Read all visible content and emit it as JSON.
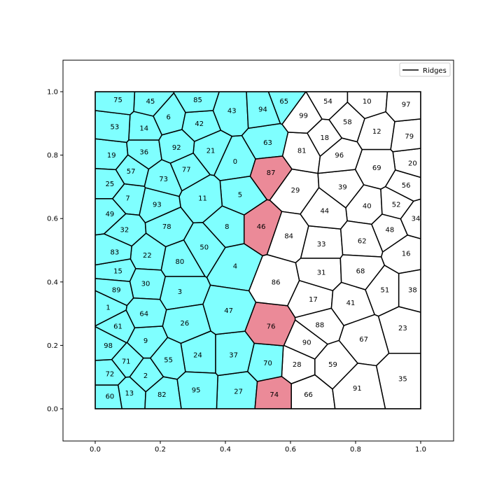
{
  "legend": {
    "label": "Ridges"
  },
  "axes": {
    "xlim": [
      -0.1,
      1.1
    ],
    "ylim": [
      -0.1,
      1.1
    ],
    "xticks": [
      "0.0",
      "0.2",
      "0.4",
      "0.6",
      "0.8",
      "1.0"
    ],
    "yticks": [
      "0.0",
      "0.2",
      "0.4",
      "0.6",
      "0.8",
      "1.0"
    ]
  },
  "colors": {
    "cyan": "#7fffff",
    "red": "#eb8a98",
    "white": "#ffffff"
  },
  "chart_data": {
    "type": "voronoi",
    "cells": [
      {
        "id": "0",
        "x": 0.43,
        "y": 0.78,
        "fill": "cyan"
      },
      {
        "id": "1",
        "x": 0.04,
        "y": 0.32,
        "fill": "cyan"
      },
      {
        "id": "2",
        "x": 0.155,
        "y": 0.105,
        "fill": "cyan"
      },
      {
        "id": "3",
        "x": 0.26,
        "y": 0.37,
        "fill": "cyan"
      },
      {
        "id": "4",
        "x": 0.43,
        "y": 0.45,
        "fill": "cyan"
      },
      {
        "id": "5",
        "x": 0.445,
        "y": 0.675,
        "fill": "cyan"
      },
      {
        "id": "6",
        "x": 0.225,
        "y": 0.92,
        "fill": "cyan"
      },
      {
        "id": "7",
        "x": 0.1,
        "y": 0.665,
        "fill": "cyan"
      },
      {
        "id": "8",
        "x": 0.405,
        "y": 0.575,
        "fill": "cyan"
      },
      {
        "id": "9",
        "x": 0.155,
        "y": 0.215,
        "fill": "cyan"
      },
      {
        "id": "10",
        "x": 0.835,
        "y": 0.97,
        "fill": "white"
      },
      {
        "id": "11",
        "x": 0.33,
        "y": 0.665,
        "fill": "cyan"
      },
      {
        "id": "12",
        "x": 0.865,
        "y": 0.875,
        "fill": "white"
      },
      {
        "id": "13",
        "x": 0.105,
        "y": 0.05,
        "fill": "cyan"
      },
      {
        "id": "14",
        "x": 0.15,
        "y": 0.885,
        "fill": "cyan"
      },
      {
        "id": "15",
        "x": 0.07,
        "y": 0.435,
        "fill": "cyan"
      },
      {
        "id": "16",
        "x": 0.955,
        "y": 0.49,
        "fill": "white"
      },
      {
        "id": "17",
        "x": 0.67,
        "y": 0.345,
        "fill": "white"
      },
      {
        "id": "18",
        "x": 0.705,
        "y": 0.855,
        "fill": "white"
      },
      {
        "id": "19",
        "x": 0.05,
        "y": 0.8,
        "fill": "cyan"
      },
      {
        "id": "20",
        "x": 0.975,
        "y": 0.775,
        "fill": "white"
      },
      {
        "id": "21",
        "x": 0.355,
        "y": 0.815,
        "fill": "cyan"
      },
      {
        "id": "22",
        "x": 0.16,
        "y": 0.485,
        "fill": "cyan"
      },
      {
        "id": "23",
        "x": 0.945,
        "y": 0.255,
        "fill": "white"
      },
      {
        "id": "24",
        "x": 0.315,
        "y": 0.17,
        "fill": "cyan"
      },
      {
        "id": "25",
        "x": 0.045,
        "y": 0.71,
        "fill": "cyan"
      },
      {
        "id": "26",
        "x": 0.275,
        "y": 0.27,
        "fill": "cyan"
      },
      {
        "id": "27",
        "x": 0.44,
        "y": 0.055,
        "fill": "cyan"
      },
      {
        "id": "28",
        "x": 0.62,
        "y": 0.14,
        "fill": "white"
      },
      {
        "id": "29",
        "x": 0.615,
        "y": 0.69,
        "fill": "white"
      },
      {
        "id": "30",
        "x": 0.155,
        "y": 0.395,
        "fill": "cyan"
      },
      {
        "id": "31",
        "x": 0.695,
        "y": 0.43,
        "fill": "white"
      },
      {
        "id": "32",
        "x": 0.09,
        "y": 0.565,
        "fill": "cyan"
      },
      {
        "id": "33",
        "x": 0.695,
        "y": 0.52,
        "fill": "white"
      },
      {
        "id": "34",
        "x": 0.985,
        "y": 0.6,
        "fill": "white"
      },
      {
        "id": "35",
        "x": 0.945,
        "y": 0.095,
        "fill": "white"
      },
      {
        "id": "36",
        "x": 0.15,
        "y": 0.81,
        "fill": "cyan"
      },
      {
        "id": "37",
        "x": 0.425,
        "y": 0.17,
        "fill": "cyan"
      },
      {
        "id": "38",
        "x": 0.975,
        "y": 0.375,
        "fill": "white"
      },
      {
        "id": "39",
        "x": 0.76,
        "y": 0.7,
        "fill": "white"
      },
      {
        "id": "40",
        "x": 0.835,
        "y": 0.64,
        "fill": "white"
      },
      {
        "id": "41",
        "x": 0.785,
        "y": 0.335,
        "fill": "white"
      },
      {
        "id": "42",
        "x": 0.32,
        "y": 0.9,
        "fill": "cyan"
      },
      {
        "id": "43",
        "x": 0.42,
        "y": 0.94,
        "fill": "cyan"
      },
      {
        "id": "44",
        "x": 0.705,
        "y": 0.625,
        "fill": "white"
      },
      {
        "id": "45",
        "x": 0.17,
        "y": 0.97,
        "fill": "cyan"
      },
      {
        "id": "46",
        "x": 0.51,
        "y": 0.575,
        "fill": "red"
      },
      {
        "id": "47",
        "x": 0.41,
        "y": 0.31,
        "fill": "cyan"
      },
      {
        "id": "48",
        "x": 0.905,
        "y": 0.565,
        "fill": "white"
      },
      {
        "id": "49",
        "x": 0.045,
        "y": 0.615,
        "fill": "cyan"
      },
      {
        "id": "50",
        "x": 0.335,
        "y": 0.51,
        "fill": "cyan"
      },
      {
        "id": "51",
        "x": 0.89,
        "y": 0.375,
        "fill": "white"
      },
      {
        "id": "52",
        "x": 0.925,
        "y": 0.645,
        "fill": "white"
      },
      {
        "id": "53",
        "x": 0.06,
        "y": 0.89,
        "fill": "cyan"
      },
      {
        "id": "54",
        "x": 0.715,
        "y": 0.97,
        "fill": "white"
      },
      {
        "id": "55",
        "x": 0.225,
        "y": 0.155,
        "fill": "cyan"
      },
      {
        "id": "56",
        "x": 0.955,
        "y": 0.705,
        "fill": "white"
      },
      {
        "id": "57",
        "x": 0.11,
        "y": 0.75,
        "fill": "cyan"
      },
      {
        "id": "58",
        "x": 0.775,
        "y": 0.905,
        "fill": "white"
      },
      {
        "id": "59",
        "x": 0.73,
        "y": 0.14,
        "fill": "white"
      },
      {
        "id": "60",
        "x": 0.045,
        "y": 0.04,
        "fill": "cyan"
      },
      {
        "id": "61",
        "x": 0.07,
        "y": 0.26,
        "fill": "cyan"
      },
      {
        "id": "62",
        "x": 0.82,
        "y": 0.53,
        "fill": "white"
      },
      {
        "id": "63",
        "x": 0.53,
        "y": 0.84,
        "fill": "cyan"
      },
      {
        "id": "64",
        "x": 0.15,
        "y": 0.3,
        "fill": "cyan"
      },
      {
        "id": "65",
        "x": 0.58,
        "y": 0.97,
        "fill": "cyan"
      },
      {
        "id": "66",
        "x": 0.655,
        "y": 0.045,
        "fill": "white"
      },
      {
        "id": "67",
        "x": 0.825,
        "y": 0.22,
        "fill": "white"
      },
      {
        "id": "68",
        "x": 0.815,
        "y": 0.435,
        "fill": "white"
      },
      {
        "id": "69",
        "x": 0.865,
        "y": 0.76,
        "fill": "white"
      },
      {
        "id": "70",
        "x": 0.53,
        "y": 0.145,
        "fill": "cyan"
      },
      {
        "id": "71",
        "x": 0.095,
        "y": 0.15,
        "fill": "cyan"
      },
      {
        "id": "72",
        "x": 0.045,
        "y": 0.11,
        "fill": "cyan"
      },
      {
        "id": "73",
        "x": 0.21,
        "y": 0.725,
        "fill": "cyan"
      },
      {
        "id": "74",
        "x": 0.55,
        "y": 0.045,
        "fill": "red"
      },
      {
        "id": "75",
        "x": 0.07,
        "y": 0.975,
        "fill": "cyan"
      },
      {
        "id": "76",
        "x": 0.54,
        "y": 0.26,
        "fill": "red"
      },
      {
        "id": "77",
        "x": 0.28,
        "y": 0.755,
        "fill": "cyan"
      },
      {
        "id": "78",
        "x": 0.22,
        "y": 0.575,
        "fill": "cyan"
      },
      {
        "id": "79",
        "x": 0.965,
        "y": 0.86,
        "fill": "white"
      },
      {
        "id": "80",
        "x": 0.26,
        "y": 0.465,
        "fill": "cyan"
      },
      {
        "id": "81",
        "x": 0.635,
        "y": 0.815,
        "fill": "white"
      },
      {
        "id": "82",
        "x": 0.205,
        "y": 0.045,
        "fill": "cyan"
      },
      {
        "id": "83",
        "x": 0.06,
        "y": 0.495,
        "fill": "cyan"
      },
      {
        "id": "84",
        "x": 0.595,
        "y": 0.545,
        "fill": "white"
      },
      {
        "id": "85",
        "x": 0.315,
        "y": 0.975,
        "fill": "cyan"
      },
      {
        "id": "86",
        "x": 0.555,
        "y": 0.4,
        "fill": "white"
      },
      {
        "id": "87",
        "x": 0.54,
        "y": 0.745,
        "fill": "red"
      },
      {
        "id": "88",
        "x": 0.69,
        "y": 0.265,
        "fill": "white"
      },
      {
        "id": "89",
        "x": 0.065,
        "y": 0.375,
        "fill": "cyan"
      },
      {
        "id": "90",
        "x": 0.65,
        "y": 0.21,
        "fill": "white"
      },
      {
        "id": "91",
        "x": 0.805,
        "y": 0.065,
        "fill": "white"
      },
      {
        "id": "92",
        "x": 0.25,
        "y": 0.825,
        "fill": "cyan"
      },
      {
        "id": "93",
        "x": 0.19,
        "y": 0.645,
        "fill": "cyan"
      },
      {
        "id": "94",
        "x": 0.515,
        "y": 0.945,
        "fill": "cyan"
      },
      {
        "id": "95",
        "x": 0.31,
        "y": 0.06,
        "fill": "cyan"
      },
      {
        "id": "96",
        "x": 0.75,
        "y": 0.8,
        "fill": "white"
      },
      {
        "id": "97",
        "x": 0.955,
        "y": 0.96,
        "fill": "white"
      },
      {
        "id": "98",
        "x": 0.04,
        "y": 0.2,
        "fill": "cyan"
      },
      {
        "id": "99",
        "x": 0.64,
        "y": 0.925,
        "fill": "white"
      }
    ]
  }
}
